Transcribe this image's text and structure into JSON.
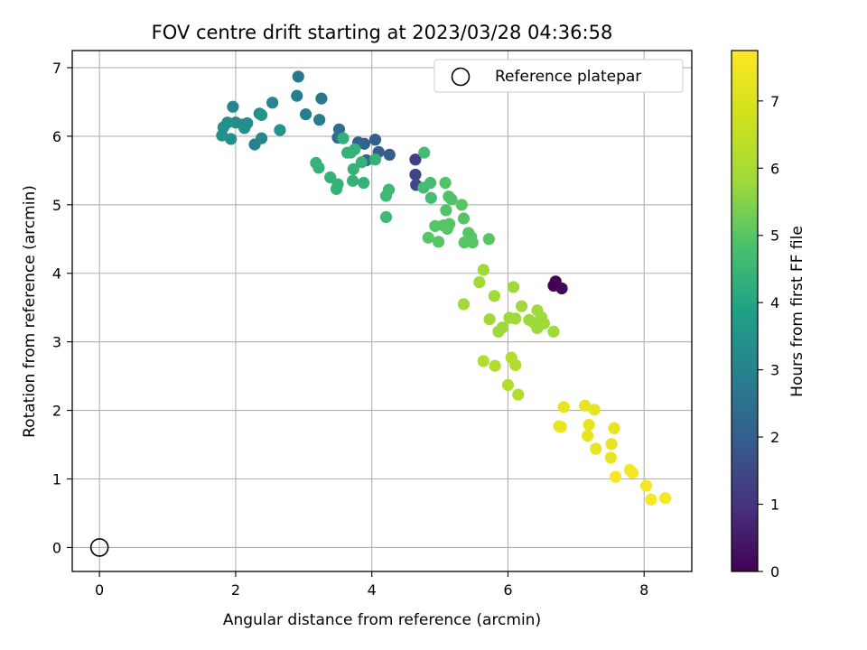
{
  "chart_data": {
    "type": "scatter",
    "title": "FOV centre drift starting at 2023/03/28 04:36:58",
    "xlabel": "Angular distance from reference (arcmin)",
    "ylabel": "Rotation from reference (arcmin)",
    "xlim": [
      -0.4,
      8.7
    ],
    "ylim": [
      -0.35,
      7.25
    ],
    "xticks": [
      "0",
      "2",
      "4",
      "6",
      "8"
    ],
    "yticks": [
      "0",
      "1",
      "2",
      "3",
      "4",
      "5",
      "6",
      "7"
    ],
    "grid": true,
    "legend": {
      "label": "Reference platepar",
      "placement": "top-right"
    },
    "reference": {
      "x": 0,
      "y": 0
    },
    "colorbar": {
      "label": "Hours from first FF file",
      "colormap": "viridis",
      "range": [
        0,
        7.75
      ],
      "ticks": [
        "0",
        "1",
        "2",
        "3",
        "4",
        "5",
        "6",
        "7"
      ]
    },
    "points": [
      [
        6.7,
        3.88,
        0.0
      ],
      [
        6.67,
        3.82,
        0.0
      ],
      [
        6.79,
        3.78,
        0.1
      ],
      [
        4.64,
        5.66,
        1.3
      ],
      [
        4.64,
        5.44,
        1.4
      ],
      [
        4.65,
        5.29,
        1.5
      ],
      [
        4.26,
        5.73,
        2.0
      ],
      [
        4.05,
        5.95,
        2.0
      ],
      [
        4.1,
        5.77,
        2.0
      ],
      [
        3.89,
        5.89,
        2.1
      ],
      [
        3.92,
        5.65,
        2.2
      ],
      [
        3.8,
        5.91,
        2.2
      ],
      [
        3.52,
        6.1,
        2.4
      ],
      [
        3.5,
        5.98,
        2.4
      ],
      [
        3.26,
        6.55,
        2.7
      ],
      [
        2.92,
        6.87,
        2.7
      ],
      [
        2.9,
        6.59,
        2.9
      ],
      [
        3.03,
        6.32,
        2.9
      ],
      [
        3.23,
        6.24,
        2.9
      ],
      [
        2.54,
        6.49,
        3.1
      ],
      [
        1.96,
        6.43,
        3.1
      ],
      [
        2.35,
        6.33,
        3.1
      ],
      [
        2.38,
        5.97,
        3.1
      ],
      [
        2.28,
        5.88,
        3.0
      ],
      [
        2.1,
        6.17,
        3.3
      ],
      [
        2.17,
        6.19,
        3.3
      ],
      [
        2.0,
        6.2,
        3.3
      ],
      [
        1.88,
        6.2,
        3.4
      ],
      [
        1.82,
        6.13,
        3.4
      ],
      [
        2.13,
        6.12,
        3.4
      ],
      [
        1.8,
        6.01,
        3.4
      ],
      [
        1.93,
        5.96,
        3.4
      ],
      [
        2.65,
        6.09,
        3.5
      ],
      [
        2.38,
        6.31,
        3.5
      ],
      [
        3.58,
        5.97,
        4.3
      ],
      [
        3.64,
        5.76,
        4.4
      ],
      [
        3.75,
        5.81,
        4.4
      ],
      [
        3.69,
        5.76,
        4.4
      ],
      [
        3.85,
        5.62,
        4.4
      ],
      [
        3.73,
        5.52,
        4.4
      ],
      [
        3.72,
        5.35,
        4.4
      ],
      [
        3.88,
        5.32,
        4.4
      ],
      [
        4.05,
        5.66,
        4.4
      ],
      [
        3.18,
        5.61,
        4.4
      ],
      [
        3.22,
        5.54,
        4.4
      ],
      [
        3.39,
        5.4,
        4.4
      ],
      [
        3.5,
        5.3,
        4.4
      ],
      [
        3.48,
        5.23,
        4.4
      ],
      [
        4.25,
        5.22,
        4.6
      ],
      [
        4.21,
        5.13,
        4.6
      ],
      [
        4.21,
        4.82,
        4.6
      ],
      [
        4.77,
        5.76,
        4.7
      ],
      [
        4.76,
        5.25,
        4.7
      ],
      [
        4.86,
        5.32,
        4.7
      ],
      [
        4.87,
        5.1,
        4.7
      ],
      [
        5.08,
        5.32,
        4.9
      ],
      [
        5.13,
        5.12,
        4.9
      ],
      [
        5.17,
        5.08,
        4.9
      ],
      [
        5.09,
        4.92,
        4.9
      ],
      [
        4.93,
        4.69,
        5.0
      ],
      [
        5.05,
        4.7,
        5.0
      ],
      [
        5.14,
        4.72,
        5.0
      ],
      [
        5.11,
        4.65,
        5.0
      ],
      [
        4.83,
        4.52,
        5.0
      ],
      [
        4.98,
        4.46,
        5.0
      ],
      [
        5.32,
        5.0,
        5.0
      ],
      [
        5.35,
        4.8,
        5.0
      ],
      [
        5.42,
        4.59,
        5.0
      ],
      [
        5.46,
        4.53,
        5.0
      ],
      [
        5.48,
        4.45,
        5.0
      ],
      [
        5.36,
        4.45,
        5.0
      ],
      [
        5.72,
        4.5,
        5.0
      ],
      [
        5.64,
        4.05,
        5.8
      ],
      [
        5.58,
        3.87,
        5.8
      ],
      [
        5.8,
        3.67,
        5.8
      ],
      [
        6.08,
        3.8,
        5.8
      ],
      [
        5.35,
        3.55,
        5.8
      ],
      [
        6.2,
        3.52,
        5.8
      ],
      [
        6.43,
        3.46,
        5.8
      ],
      [
        6.31,
        3.32,
        5.8
      ],
      [
        6.49,
        3.36,
        5.8
      ],
      [
        6.02,
        3.35,
        5.8
      ],
      [
        6.11,
        3.34,
        5.8
      ],
      [
        6.38,
        3.28,
        5.8
      ],
      [
        6.53,
        3.27,
        5.8
      ],
      [
        6.43,
        3.2,
        5.8
      ],
      [
        5.73,
        3.33,
        5.8
      ],
      [
        5.92,
        3.21,
        5.8
      ],
      [
        5.86,
        3.15,
        5.8
      ],
      [
        6.67,
        3.15,
        5.8
      ],
      [
        6.05,
        2.77,
        6.2
      ],
      [
        6.11,
        2.66,
        6.2
      ],
      [
        5.64,
        2.72,
        6.2
      ],
      [
        5.81,
        2.65,
        6.2
      ],
      [
        6.0,
        2.37,
        6.2
      ],
      [
        6.15,
        2.23,
        6.2
      ],
      [
        6.82,
        2.05,
        7.3
      ],
      [
        7.13,
        2.07,
        7.3
      ],
      [
        7.27,
        2.01,
        7.3
      ],
      [
        6.75,
        1.77,
        7.3
      ],
      [
        6.78,
        1.76,
        7.3
      ],
      [
        7.19,
        1.79,
        7.3
      ],
      [
        7.56,
        1.74,
        7.3
      ],
      [
        7.17,
        1.63,
        7.3
      ],
      [
        7.52,
        1.51,
        7.3
      ],
      [
        7.29,
        1.44,
        7.3
      ],
      [
        7.51,
        1.31,
        7.3
      ],
      [
        7.79,
        1.13,
        7.6
      ],
      [
        7.83,
        1.09,
        7.6
      ],
      [
        7.58,
        1.03,
        7.6
      ],
      [
        8.03,
        0.9,
        7.6
      ],
      [
        8.1,
        0.7,
        7.6
      ],
      [
        8.31,
        0.72,
        7.6
      ]
    ]
  }
}
